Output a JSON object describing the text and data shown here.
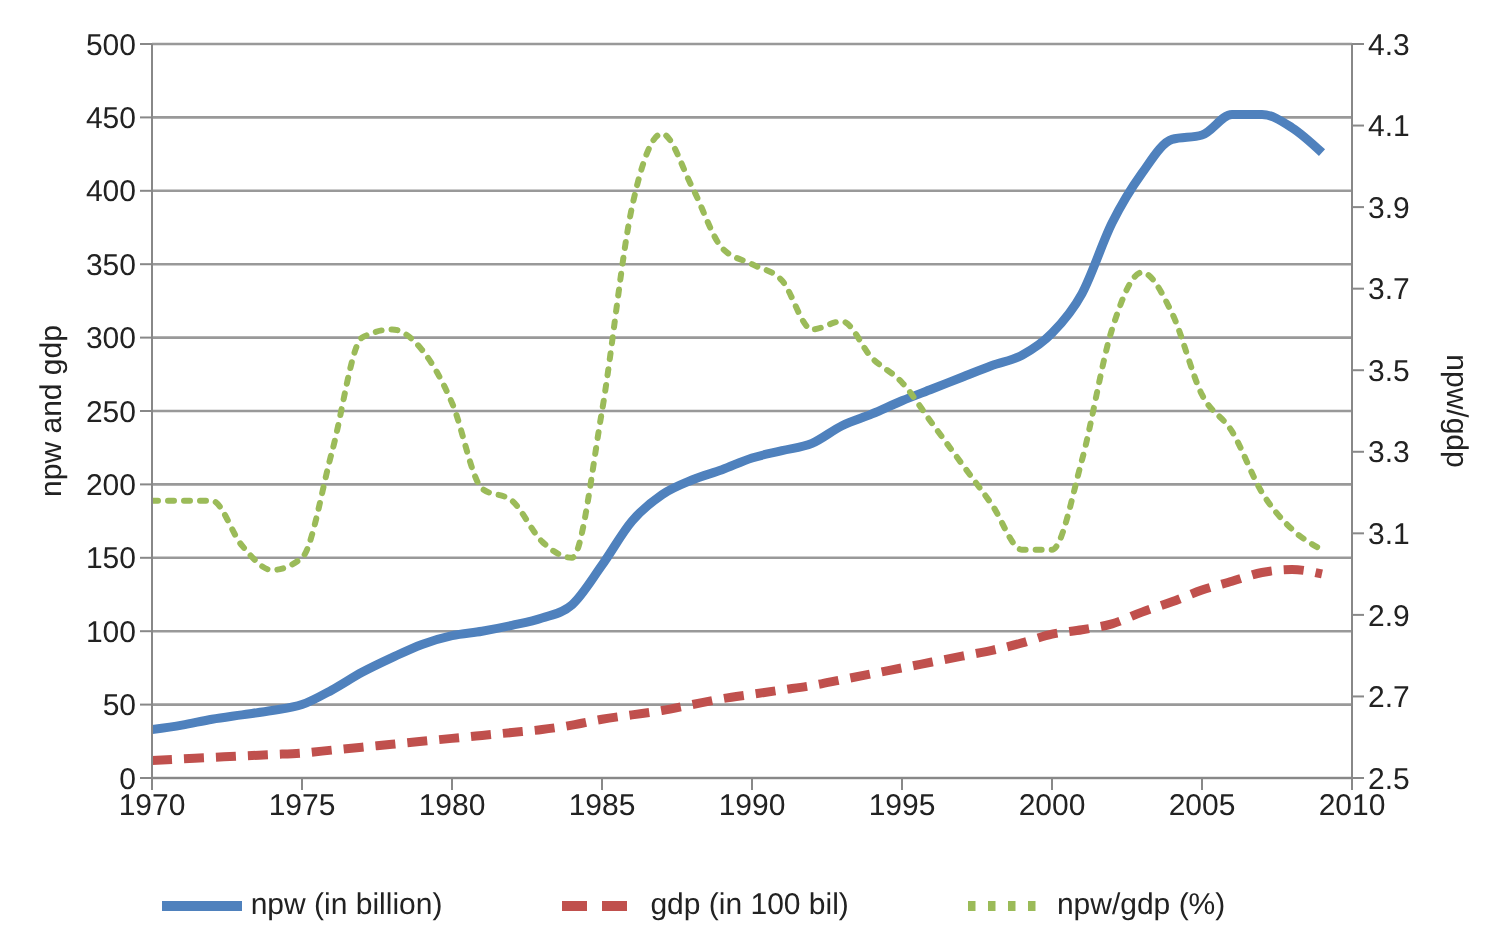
{
  "chart_data": {
    "type": "line",
    "xlabel": null,
    "ylabel": "npw and gdp",
    "y2label": "npw/gdp",
    "x": [
      1970,
      1971,
      1972,
      1973,
      1974,
      1975,
      1976,
      1977,
      1978,
      1979,
      1980,
      1981,
      1982,
      1983,
      1984,
      1985,
      1986,
      1987,
      1988,
      1989,
      1990,
      1991,
      1992,
      1993,
      1994,
      1995,
      1996,
      1997,
      1998,
      1999,
      2000,
      2001,
      2002,
      2003,
      2004,
      2005,
      2006,
      2007,
      2008,
      2009
    ],
    "series": [
      {
        "name": "npw (in billion)",
        "color": "#4f81bd",
        "line_style": "solid",
        "values": [
          33,
          36,
          40,
          43,
          46,
          50,
          60,
          72,
          82,
          91,
          97,
          100,
          104,
          109,
          118,
          145,
          175,
          193,
          203,
          210,
          218,
          223,
          228,
          240,
          248,
          257,
          265,
          273,
          281,
          288,
          303,
          330,
          378,
          412,
          435,
          438,
          452,
          452,
          443,
          426
        ]
      },
      {
        "name": "gdp (in 100 bil)",
        "color": "#c0504d",
        "line_style": "dashed",
        "values": [
          12,
          13,
          14,
          15,
          16,
          17,
          19,
          21,
          23,
          25,
          27,
          29,
          31,
          33,
          36,
          40,
          43,
          46,
          50,
          54,
          57,
          60,
          63,
          67,
          71,
          75,
          79,
          83,
          87,
          92,
          98,
          101,
          105,
          113,
          120,
          128,
          134,
          140,
          142,
          139
        ]
      },
      {
        "name": "npw/gdp (%)",
        "color": "#9bbb59",
        "line_style": "dotted",
        "axis": "y2",
        "values": [
          3.18,
          3.18,
          3.18,
          3.07,
          3.01,
          3.04,
          3.3,
          3.58,
          3.6,
          3.55,
          3.42,
          3.21,
          3.18,
          3.08,
          3.04,
          3.4,
          3.9,
          4.08,
          3.95,
          3.8,
          3.76,
          3.72,
          3.6,
          3.62,
          3.53,
          3.47,
          3.37,
          3.27,
          3.17,
          3.06,
          3.06,
          3.28,
          3.6,
          3.74,
          3.64,
          3.44,
          3.35,
          3.2,
          3.11,
          3.06
        ]
      }
    ],
    "xlim": [
      1970,
      2010
    ],
    "xticks": [
      1970,
      1975,
      1980,
      1985,
      1990,
      1995,
      2000,
      2005,
      2010
    ],
    "ylim": [
      0,
      500
    ],
    "yticks": [
      0,
      50,
      100,
      150,
      200,
      250,
      300,
      350,
      400,
      450,
      500
    ],
    "y2lim": [
      2.5,
      4.3
    ],
    "y2ticks": [
      2.5,
      2.7,
      2.9,
      3.1,
      3.3,
      3.5,
      3.7,
      3.9,
      4.1,
      4.3
    ],
    "grid": "y",
    "legend": "bottom",
    "marker": "none"
  }
}
